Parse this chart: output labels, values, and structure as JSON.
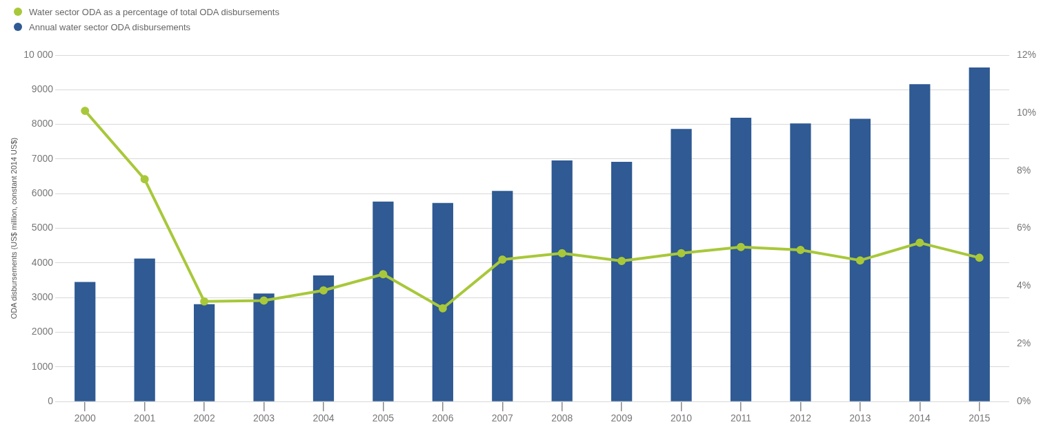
{
  "chart_data": {
    "type": "bar",
    "categories": [
      "2000",
      "2001",
      "2002",
      "2003",
      "2004",
      "2005",
      "2006",
      "2007",
      "2008",
      "2009",
      "2010",
      "2011",
      "2012",
      "2013",
      "2014",
      "2015"
    ],
    "ylabel": "ODA disbursements (US$ million, constant 2014 US$)",
    "series": [
      {
        "name": "Water sector ODA as a percentage of total ODA disbursements",
        "type": "line",
        "axis": "y2",
        "color": "#a8c83a",
        "marker": "circle",
        "values": [
          10.07,
          7.7,
          3.47,
          3.5,
          3.85,
          4.41,
          3.23,
          4.92,
          5.14,
          4.87,
          5.14,
          5.35,
          5.25,
          4.89,
          5.5,
          4.98
        ]
      },
      {
        "name": "Annual water sector ODA disbursements",
        "color": "#2f5a93",
        "values": [
          3450,
          4130,
          2810,
          3120,
          3640,
          5770,
          5730,
          6080,
          6960,
          6920,
          7870,
          8190,
          8030,
          8160,
          9160,
          9640
        ]
      }
    ],
    "ylim": [
      0,
      10000
    ],
    "yticks": [
      0,
      1000,
      2000,
      3000,
      4000,
      5000,
      6000,
      7000,
      8000,
      9000,
      {
        "value": 10000,
        "label": "10 000"
      }
    ],
    "y2lim": [
      0,
      12
    ],
    "y2ticks": [
      {
        "value": 0,
        "label": "0%"
      },
      {
        "value": 2,
        "label": "2%"
      },
      {
        "value": 4,
        "label": "4%"
      },
      {
        "value": 6,
        "label": "6%"
      },
      {
        "value": 8,
        "label": "8%"
      },
      {
        "value": 10,
        "label": "10%"
      },
      {
        "value": 12,
        "label": "12%"
      }
    ],
    "grid": "y",
    "legend": "top left"
  }
}
